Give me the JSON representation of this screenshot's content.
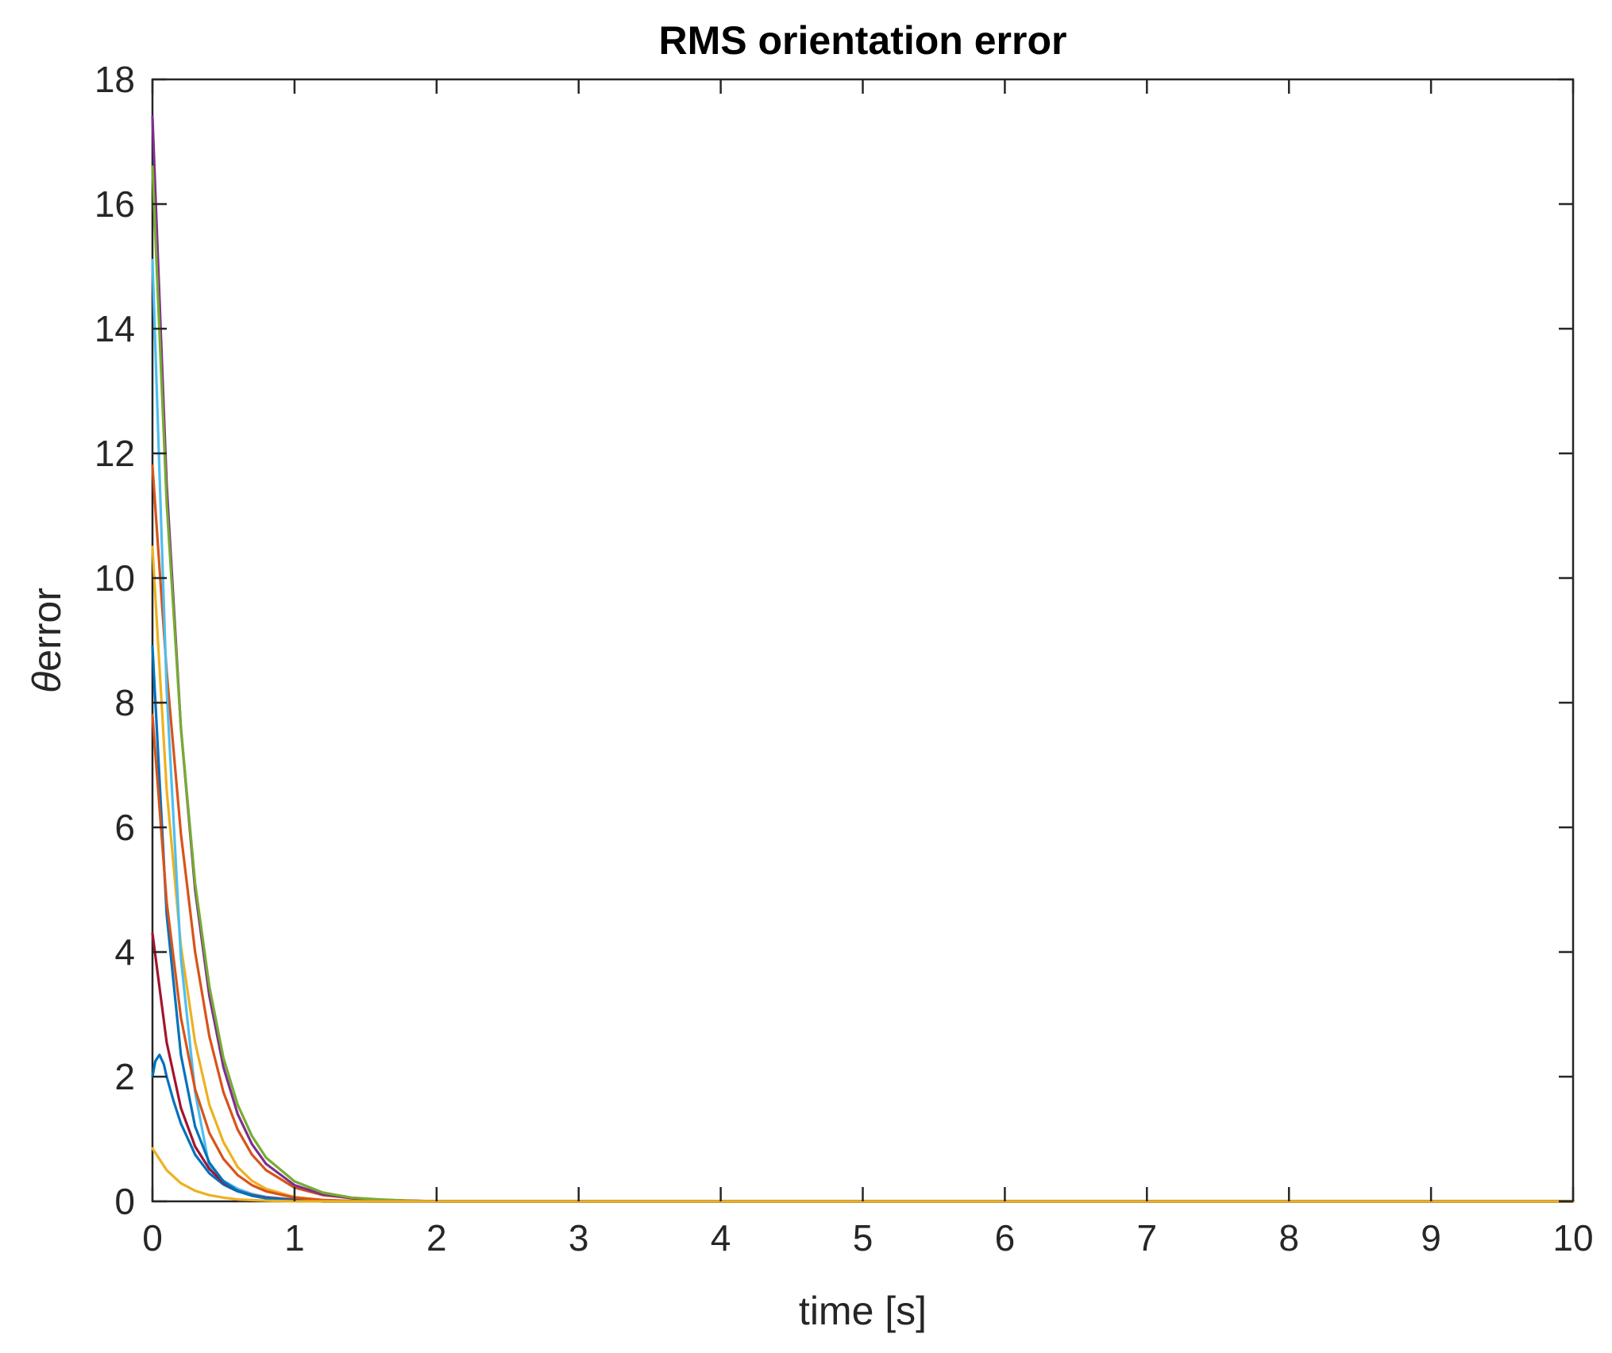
{
  "chart_data": {
    "type": "line",
    "title": "RMS orientation error",
    "xlabel": "time [s]",
    "ylabel_symbol": "θ",
    "ylabel_text": "error",
    "xlim": [
      0,
      10
    ],
    "ylim": [
      0,
      18
    ],
    "xticks": [
      "0",
      "1",
      "2",
      "3",
      "4",
      "5",
      "6",
      "7",
      "8",
      "9",
      "10"
    ],
    "yticks": [
      "0",
      "2",
      "4",
      "6",
      "8",
      "10",
      "12",
      "14",
      "16",
      "18"
    ],
    "grid": false,
    "legend": "none",
    "series": [
      {
        "color": "#0072BD",
        "x": [
          0,
          0.02,
          0.05,
          0.08,
          0.1,
          0.15,
          0.2,
          0.3,
          0.4,
          0.5,
          0.6,
          0.7,
          0.8,
          1.0,
          1.2,
          1.5,
          2,
          10
        ],
        "y": [
          2.0,
          2.25,
          2.35,
          2.2,
          2.0,
          1.6,
          1.25,
          0.75,
          0.45,
          0.27,
          0.16,
          0.09,
          0.05,
          0.02,
          0.0,
          0.0,
          0.0,
          0.0
        ]
      },
      {
        "color": "#D95319",
        "x": [
          0,
          0.1,
          0.2,
          0.3,
          0.4,
          0.5,
          0.6,
          0.7,
          0.8,
          1.0,
          1.2,
          1.5,
          2,
          10
        ],
        "y": [
          11.8,
          8.5,
          5.9,
          4.0,
          2.65,
          1.75,
          1.15,
          0.75,
          0.5,
          0.22,
          0.1,
          0.03,
          0.0,
          0.0
        ]
      },
      {
        "color": "#EDB120",
        "x": [
          0,
          0.1,
          0.2,
          0.3,
          0.4,
          0.5,
          0.6,
          0.7,
          0.8,
          1.0,
          1.2,
          1.5,
          2,
          10
        ],
        "y": [
          10.5,
          6.6,
          4.1,
          2.55,
          1.55,
          0.95,
          0.55,
          0.33,
          0.2,
          0.07,
          0.02,
          0.0,
          0.0,
          0.0
        ]
      },
      {
        "color": "#7E2F8E",
        "x": [
          0,
          0.1,
          0.2,
          0.3,
          0.4,
          0.5,
          0.6,
          0.7,
          0.8,
          1.0,
          1.2,
          1.4,
          1.6,
          1.8,
          2.0,
          10
        ],
        "y": [
          17.4,
          11.5,
          7.6,
          5.0,
          3.3,
          2.15,
          1.4,
          0.92,
          0.6,
          0.26,
          0.11,
          0.05,
          0.02,
          0.01,
          0.0,
          0.0
        ]
      },
      {
        "color": "#77AC30",
        "x": [
          0,
          0.1,
          0.2,
          0.3,
          0.4,
          0.5,
          0.6,
          0.7,
          0.8,
          1.0,
          1.2,
          1.4,
          1.6,
          1.8,
          2.0,
          10
        ],
        "y": [
          16.6,
          11.2,
          7.6,
          5.1,
          3.45,
          2.3,
          1.55,
          1.05,
          0.7,
          0.32,
          0.14,
          0.06,
          0.03,
          0.01,
          0.0,
          0.0
        ]
      },
      {
        "color": "#4DBEEE",
        "x": [
          0,
          0.1,
          0.2,
          0.3,
          0.4,
          0.5,
          0.6,
          0.7,
          0.8,
          1.0,
          1.2,
          1.5,
          2,
          10
        ],
        "y": [
          15.1,
          8.2,
          3.9,
          1.75,
          0.55,
          0.33,
          0.2,
          0.12,
          0.07,
          0.03,
          0.01,
          0.0,
          0.0,
          0.0
        ]
      },
      {
        "color": "#A2142F",
        "x": [
          0,
          0.1,
          0.2,
          0.3,
          0.4,
          0.5,
          0.6,
          0.7,
          0.8,
          1.0,
          1.2,
          1.5,
          2,
          10
        ],
        "y": [
          4.3,
          2.55,
          1.5,
          0.88,
          0.52,
          0.3,
          0.17,
          0.1,
          0.06,
          0.02,
          0.0,
          0.0,
          0.0,
          0.0
        ]
      },
      {
        "color": "#0072BD",
        "x": [
          0,
          0.1,
          0.2,
          0.3,
          0.4,
          0.5,
          0.6,
          0.7,
          0.8,
          1.0,
          1.2,
          1.5,
          2,
          10
        ],
        "y": [
          8.9,
          4.6,
          2.35,
          1.2,
          0.62,
          0.32,
          0.17,
          0.09,
          0.05,
          0.01,
          0.0,
          0.0,
          0.0,
          0.0
        ]
      },
      {
        "color": "#D95319",
        "x": [
          0,
          0.1,
          0.2,
          0.3,
          0.4,
          0.5,
          0.6,
          0.7,
          0.8,
          1.0,
          1.2,
          1.5,
          2,
          10
        ],
        "y": [
          7.8,
          4.8,
          2.95,
          1.8,
          1.1,
          0.68,
          0.42,
          0.26,
          0.16,
          0.06,
          0.02,
          0.0,
          0.0,
          0.0
        ]
      },
      {
        "color": "#EDB120",
        "x": [
          0,
          0.1,
          0.2,
          0.3,
          0.4,
          0.5,
          0.6,
          0.8,
          1.0,
          10
        ],
        "y": [
          0.85,
          0.5,
          0.29,
          0.17,
          0.1,
          0.06,
          0.03,
          0.01,
          0.0,
          0.0
        ]
      }
    ]
  }
}
